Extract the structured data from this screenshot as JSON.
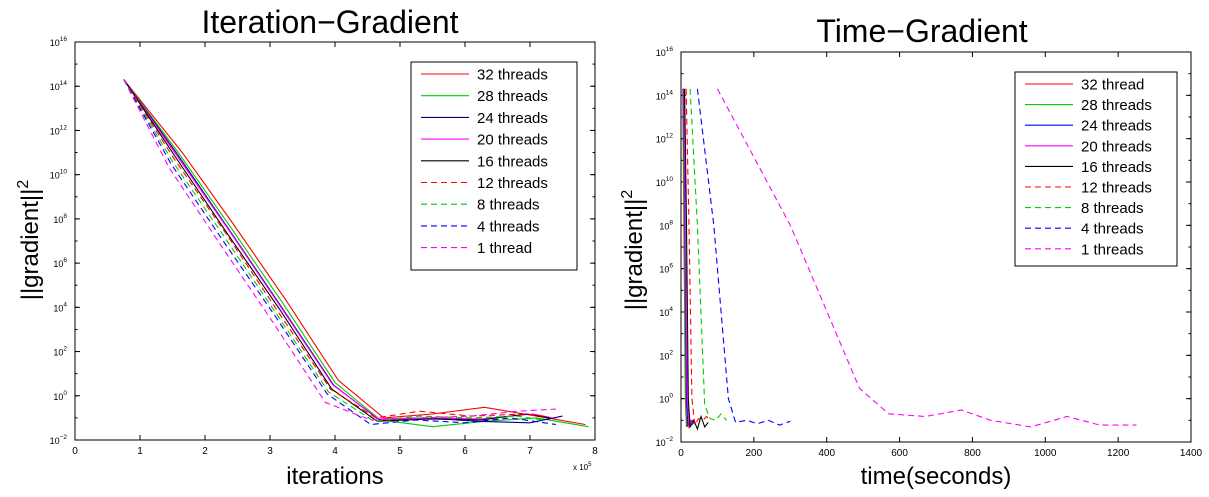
{
  "chart_data": [
    {
      "type": "line",
      "title": "Iteration−Gradient",
      "xlabel": "iterations",
      "ylabel": "||gradient||",
      "ylabel_sup": "2",
      "x_multiplier": "x 10",
      "x_multiplier_exp": "5",
      "xlim": [
        0,
        800000
      ],
      "ylim": [
        0.01,
        1e+16
      ],
      "yscale": "log",
      "xticks": [
        0,
        100000,
        200000,
        300000,
        400000,
        500000,
        600000,
        700000,
        800000
      ],
      "xtick_labels": [
        "0",
        "1",
        "2",
        "3",
        "4",
        "5",
        "6",
        "7",
        "8"
      ],
      "yticks": [
        {
          "base": "10",
          "exp": "−2",
          "value": 0.01
        },
        {
          "base": "10",
          "exp": "0",
          "value": 1
        },
        {
          "base": "10",
          "exp": "2",
          "value": 100
        },
        {
          "base": "10",
          "exp": "4",
          "value": 10000
        },
        {
          "base": "10",
          "exp": "6",
          "value": 1000000
        },
        {
          "base": "10",
          "exp": "8",
          "value": 100000000
        },
        {
          "base": "10",
          "exp": "10",
          "value": 10000000000
        },
        {
          "base": "10",
          "exp": "12",
          "value": 1000000000000
        },
        {
          "base": "10",
          "exp": "14",
          "value": 100000000000000
        },
        {
          "base": "10",
          "exp": "16",
          "value": 1e+16
        }
      ],
      "grid": false,
      "legend_position": "top-right",
      "series": [
        {
          "name": "32 threads",
          "color": "#ff0000",
          "dash": "solid",
          "x": [
            75000,
            165000,
            245000,
            325000,
            405000,
            475000,
            550000,
            630000,
            710000,
            785000
          ],
          "y": [
            200000000000000.0,
            100000000000.0,
            50000000.0,
            20000.0,
            5,
            0.1,
            0.15,
            0.3,
            0.12,
            0.05
          ]
        },
        {
          "name": "28 threads",
          "color": "#00cc00",
          "dash": "solid",
          "x": [
            75000,
            160000,
            240000,
            320000,
            400000,
            470000,
            550000,
            630000,
            710000,
            790000
          ],
          "y": [
            200000000000000.0,
            90000000000.0,
            40000000.0,
            15000.0,
            4,
            0.08,
            0.04,
            0.07,
            0.1,
            0.04
          ]
        },
        {
          "name": "24 threads",
          "color": "#000080",
          "dash": "solid",
          "x": [
            75000,
            158000,
            238000,
            318000,
            398000,
            468000,
            540000,
            620000,
            700000,
            750000
          ],
          "y": [
            200000000000000.0,
            80000000000.0,
            30000000.0,
            10000.0,
            3,
            0.08,
            0.1,
            0.07,
            0.06,
            0.12
          ]
        },
        {
          "name": "20 threads",
          "color": "#ff00ff",
          "dash": "solid",
          "x": [
            75000,
            157000,
            237000,
            317000,
            397000,
            467000,
            545000,
            625000,
            705000,
            735000
          ],
          "y": [
            200000000000000.0,
            70000000000.0,
            30000000.0,
            10000.0,
            3,
            0.09,
            0.1,
            0.09,
            0.15,
            0.1
          ]
        },
        {
          "name": "16 threads",
          "color": "#000000",
          "dash": "solid",
          "x": [
            75000,
            155000,
            235000,
            315000,
            395000,
            465000,
            545000,
            625000,
            695000,
            730000
          ],
          "y": [
            200000000000000.0,
            60000000000.0,
            20000000.0,
            8000.0,
            2,
            0.07,
            0.09,
            0.08,
            0.15,
            0.1
          ]
        },
        {
          "name": "12 threads",
          "color": "#ff0000",
          "dash": "dashed",
          "x": [
            75000,
            153000,
            233000,
            313000,
            393000,
            463000,
            530000,
            610000,
            690000,
            720000
          ],
          "y": [
            200000000000000.0,
            50000000000.0,
            20000000.0,
            6000.0,
            2,
            0.1,
            0.2,
            0.12,
            0.15,
            0.12
          ]
        },
        {
          "name": "8 threads",
          "color": "#00cc00",
          "dash": "dashed",
          "x": [
            75000,
            150000,
            230000,
            310000,
            390000,
            460000,
            530000,
            610000,
            680000,
            720000
          ],
          "y": [
            200000000000000.0,
            40000000000.0,
            15000000.0,
            5000.0,
            1.5,
            0.07,
            0.12,
            0.1,
            0.12,
            0.08
          ]
        },
        {
          "name": "4 threads",
          "color": "#0000ff",
          "dash": "dashed",
          "x": [
            75000,
            148000,
            228000,
            308000,
            388000,
            455000,
            525000,
            600000,
            670000,
            740000
          ],
          "y": [
            200000000000000.0,
            30000000000.0,
            10000000.0,
            4000.0,
            1.2,
            0.05,
            0.08,
            0.06,
            0.1,
            0.05
          ]
        },
        {
          "name": "1 thread",
          "color": "#ff00ff",
          "dash": "dashed",
          "x": [
            75000,
            145000,
            225000,
            305000,
            385000,
            455000,
            530000,
            610000,
            680000,
            740000
          ],
          "y": [
            200000000000000.0,
            20000000000.0,
            6000000.0,
            2000.0,
            0.5,
            0.08,
            0.1,
            0.12,
            0.2,
            0.25
          ]
        }
      ]
    },
    {
      "type": "line",
      "title": "Time−Gradient",
      "xlabel": "time(seconds)",
      "ylabel": "||gradient||",
      "ylabel_sup": "2",
      "xlim": [
        0,
        1400
      ],
      "ylim": [
        0.01,
        1e+16
      ],
      "yscale": "log",
      "xticks": [
        0,
        200,
        400,
        600,
        800,
        1000,
        1200,
        1400
      ],
      "xtick_labels": [
        "0",
        "200",
        "400",
        "600",
        "800",
        "1000",
        "1200",
        "1400"
      ],
      "yticks": [
        {
          "base": "10",
          "exp": "−2",
          "value": 0.01
        },
        {
          "base": "10",
          "exp": "0",
          "value": 1
        },
        {
          "base": "10",
          "exp": "2",
          "value": 100
        },
        {
          "base": "10",
          "exp": "4",
          "value": 10000
        },
        {
          "base": "10",
          "exp": "6",
          "value": 1000000
        },
        {
          "base": "10",
          "exp": "8",
          "value": 100000000
        },
        {
          "base": "10",
          "exp": "10",
          "value": 10000000000
        },
        {
          "base": "10",
          "exp": "12",
          "value": 1000000000000
        },
        {
          "base": "10",
          "exp": "14",
          "value": 100000000000000
        },
        {
          "base": "10",
          "exp": "16",
          "value": 1e+16
        }
      ],
      "grid": false,
      "legend_position": "top-right",
      "series": [
        {
          "name": "32 thread",
          "color": "#ff0000",
          "dash": "solid",
          "x": [
            5,
            8,
            12,
            15,
            18,
            22,
            28
          ],
          "y": [
            200000000000000.0,
            100000000.0,
            1,
            0.05,
            0.1,
            0.05,
            0.08
          ]
        },
        {
          "name": "28 threads",
          "color": "#00cc00",
          "dash": "solid",
          "x": [
            6,
            9,
            13,
            17,
            21,
            26,
            32
          ],
          "y": [
            200000000000000.0,
            100000000.0,
            1,
            0.05,
            0.08,
            0.1,
            0.06
          ]
        },
        {
          "name": "24 threads",
          "color": "#0000ff",
          "dash": "solid",
          "x": [
            7,
            11,
            15,
            19,
            24,
            30,
            36
          ],
          "y": [
            200000000000000.0,
            100000000.0,
            1,
            0.06,
            0.08,
            0.1,
            0.07
          ]
        },
        {
          "name": "20 threads",
          "color": "#ff00ff",
          "dash": "solid",
          "x": [
            8,
            12,
            17,
            22,
            28,
            34,
            40
          ],
          "y": [
            200000000000000.0,
            100000000.0,
            1,
            0.06,
            0.09,
            0.1,
            0.08
          ]
        },
        {
          "name": "16 threads",
          "color": "#000000",
          "dash": "solid",
          "x": [
            10,
            15,
            20,
            25,
            35,
            45,
            55,
            65,
            75
          ],
          "y": [
            200000000000000.0,
            100000000.0,
            1,
            0.05,
            0.1,
            0.04,
            0.15,
            0.05,
            0.08
          ]
        },
        {
          "name": "12 threads",
          "color": "#ff0000",
          "dash": "dashed",
          "x": [
            14,
            22,
            30,
            38,
            48,
            60,
            70,
            80
          ],
          "y": [
            200000000000000.0,
            100000000.0,
            1,
            0.06,
            0.12,
            0.1,
            0.15,
            0.1
          ]
        },
        {
          "name": "8 threads",
          "color": "#00cc00",
          "dash": "dashed",
          "x": [
            25,
            45,
            65,
            80,
            95,
            110,
            125
          ],
          "y": [
            200000000000000.0,
            100000000.0,
            0.5,
            0.12,
            0.1,
            0.2,
            0.1
          ]
        },
        {
          "name": "4 threads",
          "color": "#0000ff",
          "dash": "dashed",
          "x": [
            45,
            90,
            130,
            150,
            180,
            210,
            240,
            270,
            300
          ],
          "y": [
            200000000000000.0,
            100000000.0,
            1,
            0.08,
            0.1,
            0.07,
            0.1,
            0.06,
            0.09
          ]
        },
        {
          "name": "1 threads",
          "color": "#ff00ff",
          "dash": "dashed",
          "x": [
            100,
            300,
            490,
            570,
            670,
            770,
            850,
            960,
            1060,
            1150,
            1250
          ],
          "y": [
            200000000000000.0,
            100000000.0,
            3,
            0.2,
            0.15,
            0.3,
            0.1,
            0.05,
            0.15,
            0.06,
            0.06
          ]
        }
      ]
    }
  ]
}
